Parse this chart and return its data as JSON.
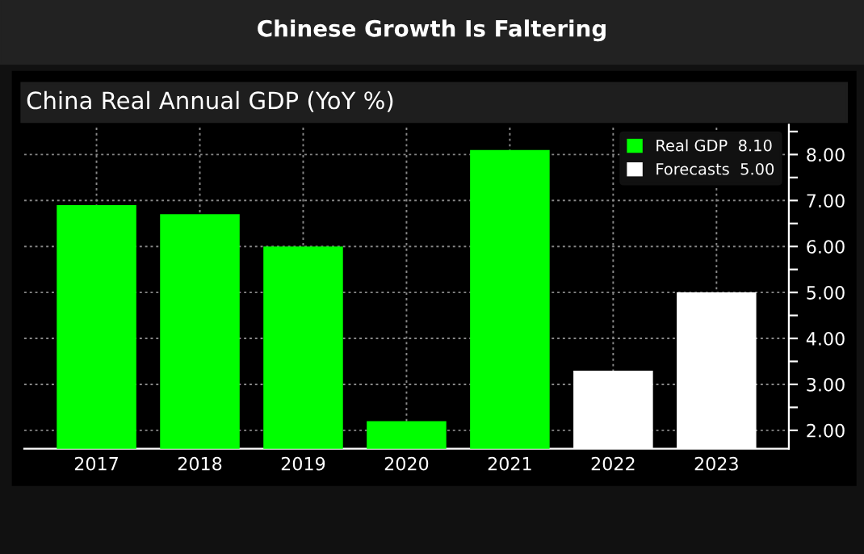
{
  "chart_data": {
    "type": "bar",
    "title": "Chinese Growth Is Faltering",
    "subtitle": "China Real Annual GDP (YoY %)",
    "categories": [
      "2017",
      "2018",
      "2019",
      "2020",
      "2021",
      "2022",
      "2023"
    ],
    "series": [
      {
        "name": "Real GDP  8.10",
        "color": "#00ff00",
        "values": [
          6.9,
          6.7,
          6.0,
          2.2,
          8.1,
          null,
          null
        ]
      },
      {
        "name": "Forecasts  5.00",
        "color": "#ffffff",
        "values": [
          null,
          null,
          null,
          null,
          null,
          3.3,
          5.0
        ]
      }
    ],
    "stacked": true,
    "ylim": [
      1.6,
      8.65
    ],
    "yticks": [
      {
        "value": 2,
        "label": "2.00"
      },
      {
        "value": 2.5,
        "label": null
      },
      {
        "value": 3,
        "label": "3.00"
      },
      {
        "value": 3.5,
        "label": null
      },
      {
        "value": 4,
        "label": "4.00"
      },
      {
        "value": 4.5,
        "label": null
      },
      {
        "value": 5,
        "label": "5.00"
      },
      {
        "value": 5.5,
        "label": null
      },
      {
        "value": 6,
        "label": "6.00"
      },
      {
        "value": 6.5,
        "label": null
      },
      {
        "value": 7,
        "label": "7.00"
      },
      {
        "value": 7.5,
        "label": null
      },
      {
        "value": 8,
        "label": "8.00"
      },
      {
        "value": 8.5,
        "label": null
      }
    ],
    "grid": true,
    "legend": "top right"
  }
}
